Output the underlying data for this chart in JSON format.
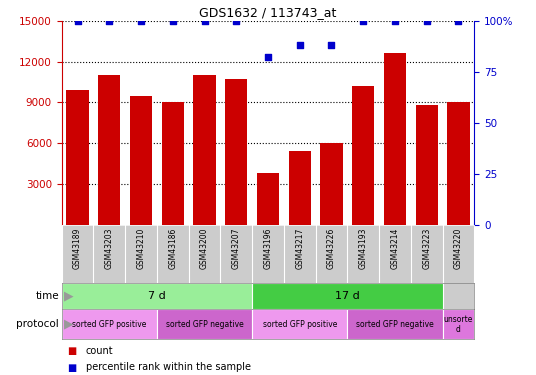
{
  "title": "GDS1632 / 113743_at",
  "samples": [
    "GSM43189",
    "GSM43203",
    "GSM43210",
    "GSM43186",
    "GSM43200",
    "GSM43207",
    "GSM43196",
    "GSM43217",
    "GSM43226",
    "GSM43193",
    "GSM43214",
    "GSM43223",
    "GSM43220"
  ],
  "counts": [
    9900,
    11000,
    9500,
    9000,
    11000,
    10700,
    3800,
    5400,
    6000,
    10200,
    12600,
    8800,
    9000
  ],
  "percentile_ranks": [
    100,
    100,
    100,
    100,
    100,
    100,
    82,
    88,
    88,
    100,
    100,
    100,
    100
  ],
  "ylim_left": [
    0,
    15000
  ],
  "ylim_right": [
    0,
    100
  ],
  "yticks_left": [
    3000,
    6000,
    9000,
    12000,
    15000
  ],
  "yticks_right": [
    0,
    25,
    50,
    75,
    100
  ],
  "bar_color": "#cc0000",
  "dot_color": "#0000cc",
  "time_groups": [
    {
      "label": "7 d",
      "start": 0,
      "end": 6,
      "color": "#99ee99"
    },
    {
      "label": "17 d",
      "start": 6,
      "end": 12,
      "color": "#44cc44"
    }
  ],
  "protocol_groups": [
    {
      "label": "sorted GFP positive",
      "start": 0,
      "end": 3,
      "color": "#ee99ee"
    },
    {
      "label": "sorted GFP negative",
      "start": 3,
      "end": 6,
      "color": "#cc66cc"
    },
    {
      "label": "sorted GFP positive",
      "start": 6,
      "end": 9,
      "color": "#ee99ee"
    },
    {
      "label": "sorted GFP negative",
      "start": 9,
      "end": 12,
      "color": "#cc66cc"
    },
    {
      "label": "unsorte\nd",
      "start": 12,
      "end": 13,
      "color": "#dd77dd"
    }
  ],
  "legend_items": [
    {
      "label": "count",
      "color": "#cc0000"
    },
    {
      "label": "percentile rank within the sample",
      "color": "#0000cc"
    }
  ],
  "background_color": "#ffffff",
  "grid_color": "#888888",
  "tick_color_left": "#cc0000",
  "tick_color_right": "#0000cc",
  "label_bg": "#cccccc",
  "arrow_color": "#999999"
}
